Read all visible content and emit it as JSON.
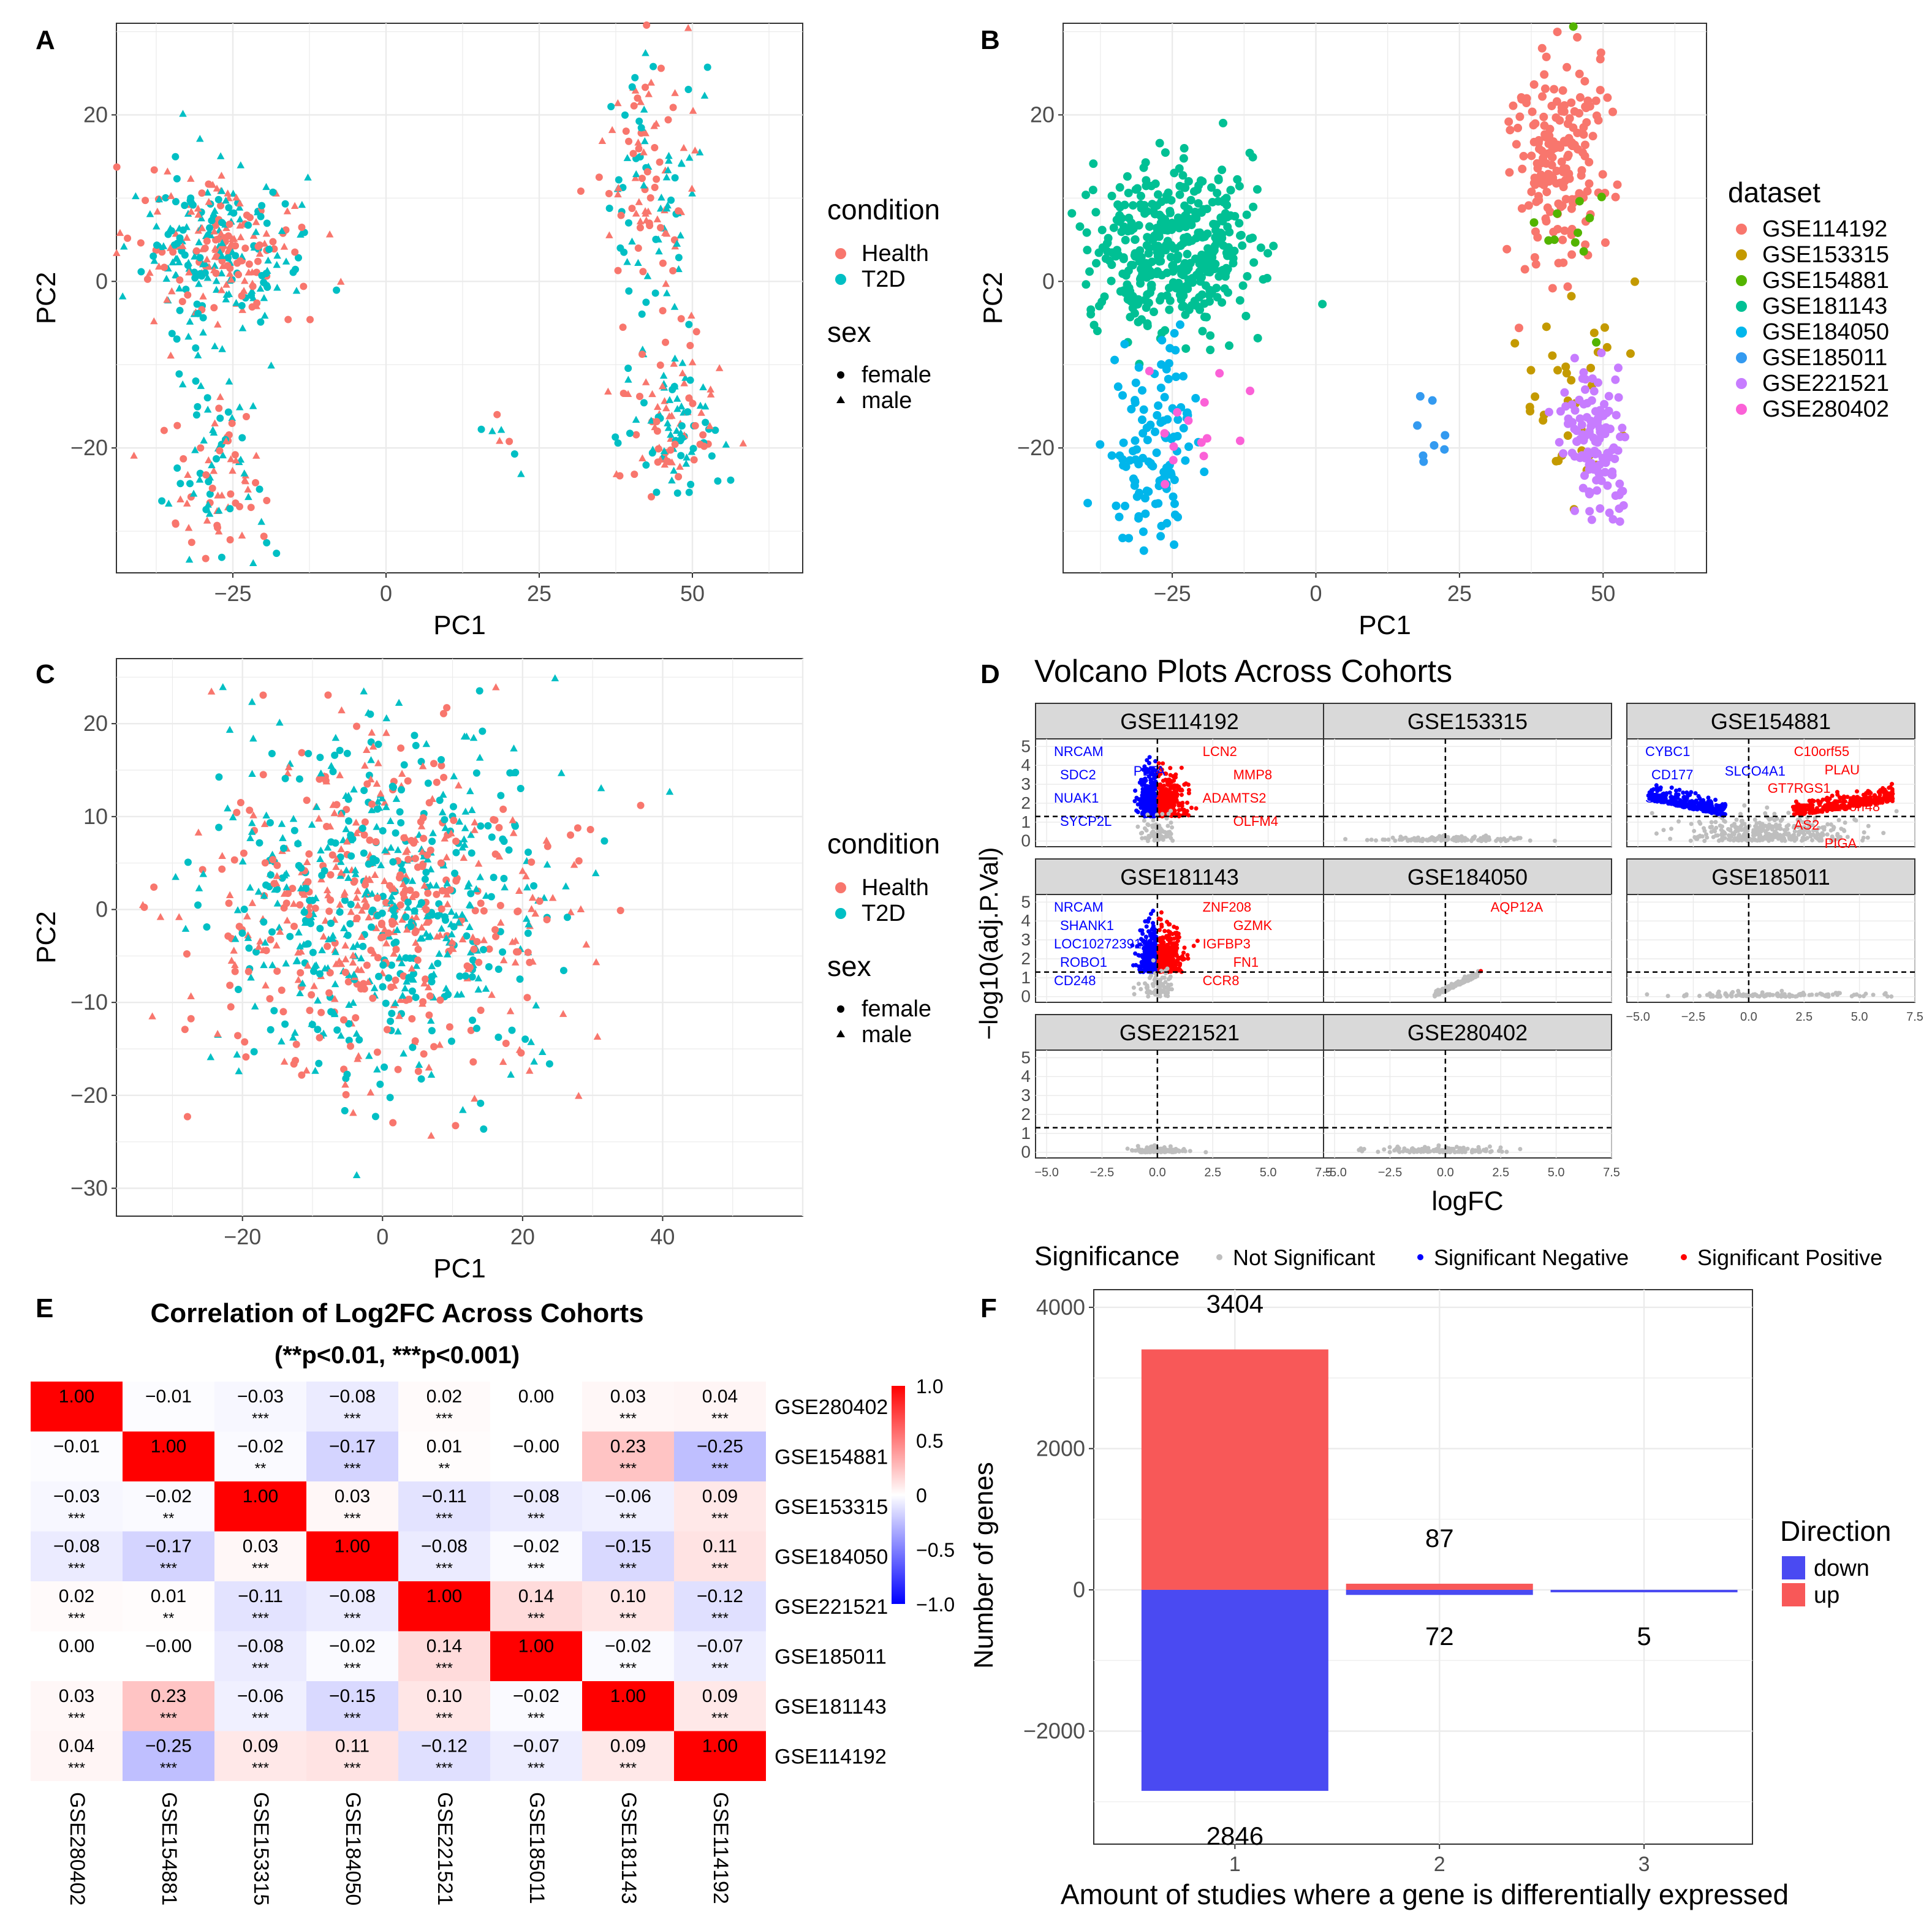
{
  "colors": {
    "health": "#F8766D",
    "t2d": "#00BFC4",
    "sig_neg": "#0000FF",
    "sig_pos": "#FF0000",
    "not_sig": "#BEBEBE",
    "bar_up": "#F85858",
    "bar_down": "#4A4AF2",
    "datasets": [
      "#F8766D",
      "#C49A00",
      "#53B400",
      "#00C094",
      "#00B6EB",
      "#339AF0",
      "#C77CFF",
      "#FB61D7"
    ]
  },
  "chart_data": [
    {
      "panel": "A",
      "type": "scatter",
      "xlabel": "PC1",
      "ylabel": "PC2",
      "xlim": [
        -44,
        68
      ],
      "ylim": [
        -35,
        31
      ],
      "x_ticks": [
        -25,
        0,
        25,
        50
      ],
      "y_ticks": [
        -20,
        0,
        20
      ],
      "x_tick_labels": [
        "−25",
        "0",
        "25",
        "50"
      ],
      "y_tick_labels": [
        "−20",
        "0",
        "20"
      ],
      "legend": {
        "color_title": "condition",
        "color_entries": [
          "Health",
          "T2D"
        ],
        "shape_title": "sex",
        "shape_entries": [
          "female",
          "male"
        ]
      },
      "clusters": [
        {
          "cx": -27,
          "cy": 4,
          "sx": 7,
          "sy": 5,
          "n": 330
        },
        {
          "cx": -28,
          "cy": -22,
          "sx": 4,
          "sy": 6,
          "n": 110
        },
        {
          "cx": 43,
          "cy": 15,
          "sx": 4,
          "sy": 7,
          "n": 130
        },
        {
          "cx": 47,
          "cy": -18,
          "sx": 4,
          "sy": 4,
          "n": 120
        },
        {
          "cx": 44,
          "cy": -5,
          "sx": 3,
          "sy": 6,
          "n": 30
        },
        {
          "cx": 20,
          "cy": -18,
          "sx": 2,
          "sy": 2,
          "n": 8
        }
      ]
    },
    {
      "panel": "B",
      "type": "scatter",
      "xlabel": "PC1",
      "ylabel": "PC2",
      "xlim": [
        -44,
        68
      ],
      "ylim": [
        -35,
        31
      ],
      "x_ticks": [
        -25,
        0,
        25,
        50
      ],
      "y_ticks": [
        -20,
        0,
        20
      ],
      "x_tick_labels": [
        "−25",
        "0",
        "25",
        "50"
      ],
      "y_tick_labels": [
        "−20",
        "0",
        "20"
      ],
      "legend": {
        "title": "dataset",
        "entries": [
          "GSE114192",
          "GSE153315",
          "GSE154881",
          "GSE181143",
          "GSE184050",
          "GSE185011",
          "GSE221521",
          "GSE280402"
        ]
      },
      "clusters": [
        {
          "dataset": 0,
          "cx": 42,
          "cy": 15,
          "sx": 4,
          "sy": 7,
          "n": 190
        },
        {
          "dataset": 1,
          "cx": 44,
          "cy": -12,
          "sx": 5,
          "sy": 6,
          "n": 35
        },
        {
          "dataset": 2,
          "cx": 45,
          "cy": 10,
          "sx": 3,
          "sy": 8,
          "n": 12
        },
        {
          "dataset": 3,
          "cx": -25,
          "cy": 4,
          "sx": 7,
          "sy": 5,
          "n": 420
        },
        {
          "dataset": 4,
          "cx": -28,
          "cy": -21,
          "sx": 4,
          "sy": 6,
          "n": 120
        },
        {
          "dataset": 5,
          "cx": 20,
          "cy": -17,
          "sx": 2,
          "sy": 3,
          "n": 8
        },
        {
          "dataset": 6,
          "cx": 49,
          "cy": -19,
          "sx": 3,
          "sy": 4,
          "n": 130
        },
        {
          "dataset": 7,
          "cx": -19,
          "cy": -19,
          "sx": 4,
          "sy": 6,
          "n": 14
        }
      ]
    },
    {
      "panel": "C",
      "type": "scatter",
      "xlabel": "PC1",
      "ylabel": "PC2",
      "xlim": [
        -38,
        60
      ],
      "ylim": [
        -33,
        27
      ],
      "x_ticks": [
        -20,
        0,
        20,
        40
      ],
      "y_ticks": [
        -30,
        -20,
        -10,
        0,
        10,
        20
      ],
      "x_tick_labels": [
        "−20",
        "0",
        "20",
        "40"
      ],
      "y_tick_labels": [
        "−30",
        "−20",
        "−10",
        "0",
        "10",
        "20"
      ],
      "legend": {
        "color_title": "condition",
        "color_entries": [
          "Health",
          "T2D"
        ],
        "shape_title": "sex",
        "shape_entries": [
          "female",
          "male"
        ]
      },
      "clusters": [
        {
          "cx": 0,
          "cy": 0,
          "sx": 13,
          "sy": 9,
          "n": 1000
        }
      ]
    },
    {
      "panel": "D",
      "type": "scatter",
      "title": "Volcano Plots Across Cohorts",
      "xlabel": "logFC",
      "ylabel": "−log10(adj.P.Val)",
      "xlim": [
        -5.5,
        7.5
      ],
      "ylim": [
        -0.3,
        5.4
      ],
      "x_ticks": [
        -5,
        -2.5,
        0,
        2.5,
        5,
        7.5
      ],
      "y_ticks": [
        0,
        1,
        2,
        3,
        4,
        5
      ],
      "x_tick_labels": [
        "−5.0",
        "−2.5",
        "0.0",
        "2.5",
        "5.0",
        "7.5"
      ],
      "y_tick_labels": [
        "0",
        "1",
        "2",
        "3",
        "4",
        "5"
      ],
      "threshold": 1.3,
      "legend": {
        "title": "Significance",
        "entries": [
          "Not Significant",
          "Significant Negative",
          "Significant Positive"
        ]
      },
      "facets": [
        {
          "name": "GSE114192",
          "pattern": "sym",
          "neg_labels": [
            "NRCAM",
            "SDC2",
            "NUAK1",
            "SYCP2L"
          ],
          "pos_labels": [
            "LCN2",
            "MMP8",
            "ADAMTS2",
            "OLFM4"
          ],
          "extra_labels": [
            "PLTA"
          ]
        },
        {
          "name": "GSE153315",
          "pattern": "flat",
          "neg_labels": [],
          "pos_labels": [],
          "extra_labels": []
        },
        {
          "name": "GSE154881",
          "pattern": "wide",
          "neg_labels": [
            "CYBC1",
            "CD177",
            "SHD"
          ],
          "pos_labels": [
            "C10orf55",
            "PLAU",
            "RGS1",
            "C15orf48",
            "AS2",
            "PIGA"
          ],
          "extra_labels": [
            "SLCO4A1",
            "GT7"
          ]
        },
        {
          "name": "GSE181143",
          "pattern": "sym",
          "neg_labels": [
            "NRCAM",
            "SHANK1",
            "LOC102723914",
            "ROBO1",
            "CD248"
          ],
          "pos_labels": [
            "ZNF208",
            "GZMK",
            "IGFBP3",
            "FN1",
            "CCR8"
          ],
          "extra_labels": []
        },
        {
          "name": "GSE184050",
          "pattern": "flat",
          "neg_labels": [],
          "pos_labels": [
            "AQP12A"
          ],
          "extra_labels": []
        },
        {
          "name": "GSE185011",
          "pattern": "flat",
          "neg_labels": [],
          "pos_labels": [],
          "extra_labels": []
        },
        {
          "name": "GSE221521",
          "pattern": "flat",
          "neg_labels": [],
          "pos_labels": [],
          "extra_labels": []
        },
        {
          "name": "GSE280402",
          "pattern": "flat",
          "neg_labels": [],
          "pos_labels": [],
          "extra_labels": []
        }
      ]
    },
    {
      "panel": "E",
      "type": "heatmap",
      "title": "Correlation of Log2FC Across Cohorts",
      "subtitle": "(**p<0.01, ***p<0.001)",
      "labels": [
        "GSE280402",
        "GSE154881",
        "GSE153315",
        "GSE184050",
        "GSE221521",
        "GSE185011",
        "GSE181143",
        "GSE114192"
      ],
      "values": [
        [
          "1.00",
          "−0.01",
          "−0.03",
          "−0.08",
          "0.02",
          "0.00",
          "0.03",
          "0.04"
        ],
        [
          "−0.01",
          "1.00",
          "−0.02",
          "−0.17",
          "0.01",
          "−0.00",
          "0.23",
          "−0.25"
        ],
        [
          "−0.03",
          "−0.02",
          "1.00",
          "0.03",
          "−0.11",
          "−0.08",
          "−0.06",
          "0.09"
        ],
        [
          "−0.08",
          "−0.17",
          "0.03",
          "1.00",
          "−0.08",
          "−0.02",
          "−0.15",
          "0.11"
        ],
        [
          "0.02",
          "0.01",
          "−0.11",
          "−0.08",
          "1.00",
          "0.14",
          "0.10",
          "−0.12"
        ],
        [
          "0.00",
          "−0.00",
          "−0.08",
          "−0.02",
          "0.14",
          "1.00",
          "−0.02",
          "−0.07"
        ],
        [
          "0.03",
          "0.23",
          "−0.06",
          "−0.15",
          "0.10",
          "−0.02",
          "1.00",
          "0.09"
        ],
        [
          "0.04",
          "−0.25",
          "0.09",
          "0.11",
          "−0.12",
          "−0.07",
          "0.09",
          "1.00"
        ]
      ],
      "stars": [
        [
          "",
          "",
          "***",
          "***",
          "***",
          "",
          "***",
          "***"
        ],
        [
          "",
          "",
          "**",
          "***",
          "**",
          "",
          "***",
          "***"
        ],
        [
          "***",
          "**",
          "",
          "***",
          "***",
          "***",
          "***",
          "***"
        ],
        [
          "***",
          "***",
          "***",
          "",
          "***",
          "***",
          "***",
          "***"
        ],
        [
          "***",
          "**",
          "***",
          "***",
          "",
          "***",
          "***",
          "***"
        ],
        [
          "",
          "",
          "***",
          "***",
          "***",
          "",
          "***",
          "***"
        ],
        [
          "***",
          "***",
          "***",
          "***",
          "***",
          "***",
          "",
          "***"
        ],
        [
          "***",
          "***",
          "***",
          "***",
          "***",
          "***",
          "***",
          ""
        ]
      ],
      "color_range": [
        -1,
        1
      ],
      "colorbar_ticks": [
        "1.0",
        "0.5",
        "0",
        "−0.5",
        "−1.0"
      ]
    },
    {
      "panel": "F",
      "type": "bar",
      "categories": [
        "1",
        "2",
        "3"
      ],
      "series": [
        {
          "name": "up",
          "values": [
            3404,
            87,
            0
          ]
        },
        {
          "name": "down",
          "values": [
            2846,
            72,
            5
          ]
        }
      ],
      "bar_labels": {
        "up": [
          "3404",
          "87",
          ""
        ],
        "down": [
          "2846",
          "72",
          "5"
        ]
      },
      "xlabel": "Amount of studies where a gene is differentially expressed",
      "ylabel": "Number of genes",
      "ylim": [
        -3600,
        4250
      ],
      "y_ticks": [
        -2000,
        0,
        2000,
        4000
      ],
      "y_tick_labels": [
        "−2000",
        "0",
        "2000",
        "4000"
      ],
      "legend": {
        "title": "Direction",
        "entries": [
          "down",
          "up"
        ]
      }
    }
  ],
  "panel_labels": [
    "A",
    "B",
    "C",
    "D",
    "E",
    "F"
  ]
}
